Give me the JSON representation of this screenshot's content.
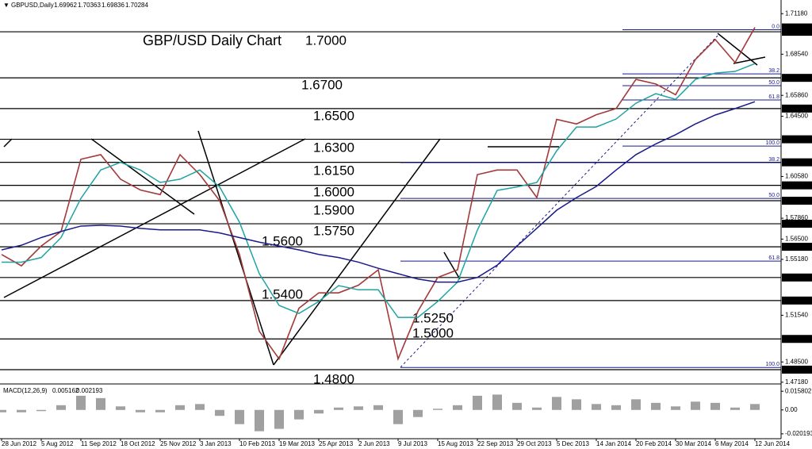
{
  "chart_data": {
    "type": "line",
    "title": "GBP/USD Daily Chart",
    "symbol": "GBPUSD,Daily",
    "ohlc": [
      1.69962,
      1.70363,
      1.69836,
      1.70284
    ],
    "categories": [
      "28 Jun 2012",
      null,
      "5 Aug 2012",
      null,
      "11 Sep 2012",
      null,
      "18 Oct 2012",
      null,
      "25 Nov 2012",
      null,
      "3 Jan 2013",
      null,
      "10 Feb 2013",
      null,
      "19 Mar 2013",
      null,
      "25 Apr 2013",
      null,
      "2 Jun 2013",
      null,
      "9 Jul 2013",
      null,
      "15 Aug 2013",
      null,
      "22 Sep 2013",
      null,
      "29 Oct 2013",
      null,
      "5 Dec 2013",
      null,
      "14 Jan 2014",
      null,
      "20 Feb 2014",
      null,
      "30 Mar 2014",
      null,
      "6 May 2014",
      null,
      "12 Jun 2014"
    ],
    "series": [
      {
        "color": "#a33a3a",
        "values": [
          1.555,
          1.5476,
          1.5605,
          1.57,
          1.617,
          1.62,
          1.604,
          1.597,
          1.594,
          1.62,
          1.607,
          1.59,
          1.555,
          1.505,
          1.487,
          1.52,
          1.53,
          1.53,
          1.535,
          1.545,
          1.487,
          1.518,
          1.54,
          1.545,
          1.607,
          1.61,
          1.61,
          1.592,
          1.643,
          1.64,
          1.646,
          1.65,
          1.669,
          1.666,
          1.659,
          1.682,
          1.695,
          1.68,
          1.70284
        ]
      },
      {
        "color": "#1fa3a3",
        "values": [
          1.55,
          1.55,
          1.553,
          1.566,
          1.5915,
          1.61,
          1.615,
          1.61,
          1.6019,
          1.604,
          1.61,
          1.599,
          1.576,
          1.5425,
          1.5218,
          1.5166,
          1.5244,
          1.5347,
          1.532,
          1.532,
          1.514,
          1.514,
          1.5244,
          1.537,
          1.5709,
          1.5967,
          1.599,
          1.6019,
          1.6225,
          1.638,
          1.638,
          1.6432,
          1.6535,
          1.6597,
          1.656,
          1.669,
          1.6731,
          1.6742,
          1.6793
        ]
      },
      {
        "color": "#1a1a8c",
        "values": [
          1.558,
          1.561,
          1.566,
          1.57,
          1.5735,
          1.574,
          1.5735,
          1.572,
          1.571,
          1.571,
          1.571,
          1.569,
          1.566,
          1.563,
          1.5605,
          1.558,
          1.555,
          1.553,
          1.55,
          1.546,
          1.5425,
          1.539,
          1.537,
          1.537,
          1.54,
          1.548,
          1.5605,
          1.572,
          1.5838,
          1.592,
          1.5993,
          1.61,
          1.62,
          1.627,
          1.633,
          1.64,
          1.6458,
          1.65,
          1.6545
        ]
      }
    ],
    "ylim": [
      1.4712,
      1.7207
    ],
    "yticks": [
      {
        "value": 1.7118,
        "label": "1.71180"
      },
      {
        "value": 1.6854,
        "label": "1.68540"
      },
      {
        "value": 1.6586,
        "label": "1.65860"
      },
      {
        "value": 1.645,
        "label": "1.64500"
      },
      {
        "value": 1.6058,
        "label": "1.60580"
      },
      {
        "value": 1.5786,
        "label": "1.57860"
      },
      {
        "value": 1.565,
        "label": "1.56500"
      },
      {
        "value": 1.5518,
        "label": "1.55180"
      },
      {
        "value": 1.5154,
        "label": "1.51540"
      },
      {
        "value": 1.485,
        "label": "1.48500"
      },
      {
        "value": 1.4718,
        "label": "1.47180"
      }
    ],
    "levels": [
      {
        "value": 1.7,
        "label": "1.7000",
        "axis_label": "1.70000"
      },
      {
        "value": 1.67,
        "label": "1.6700",
        "axis_label": "1.67000"
      },
      {
        "value": 1.65,
        "label": "1.6500",
        "axis_label": "1.65000"
      },
      {
        "value": 1.63,
        "label": "1.6300",
        "axis_label": "1.63000"
      },
      {
        "value": 1.615,
        "label": "1.6150",
        "axis_label": "1.61500"
      },
      {
        "value": 1.6,
        "label": "1.6000",
        "axis_label": "1.60000"
      },
      {
        "value": 1.59,
        "label": "1.5900",
        "axis_label": "1.59000"
      },
      {
        "value": 1.575,
        "label": "1.5750",
        "axis_label": "1.57500"
      },
      {
        "value": 1.56,
        "label": "1.5600",
        "axis_label": "1.56000"
      },
      {
        "value": 1.54,
        "label": "1.5400",
        "axis_label": "1.54000"
      },
      {
        "value": 1.525,
        "label": "1.5250",
        "axis_label": "1.52500"
      },
      {
        "value": 1.5,
        "label": "1.5000",
        "axis_label": "1.50000"
      },
      {
        "value": 1.48,
        "label": "1.4800",
        "axis_label": "1.48000"
      }
    ],
    "fib_upper": [
      {
        "value": 1.7013,
        "label": "0.0"
      },
      {
        "value": 1.6726,
        "label": "38.2"
      },
      {
        "value": 1.6649,
        "label": "50.0"
      },
      {
        "value": 1.6556,
        "label": "61.8"
      },
      {
        "value": 1.6256,
        "label": "100.0"
      }
    ],
    "fib_lower": [
      {
        "value": 1.6148,
        "label": "38.2"
      },
      {
        "value": 1.5915,
        "label": "50.0"
      },
      {
        "value": 1.5507,
        "label": "61.8"
      },
      {
        "value": 1.4814,
        "label": "100.0"
      }
    ],
    "macd": {
      "label": "MACD(12,26,9)",
      "main": 0.005162,
      "signal": 0.002193,
      "color": "#a0a0a0",
      "values": [
        -0.002,
        -0.002,
        -0.001,
        0.004,
        0.012,
        0.01,
        0.003,
        -0.002,
        -0.002,
        0.004,
        0.005,
        -0.005,
        -0.012,
        -0.018,
        -0.016,
        -0.008,
        -0.003,
        0.002,
        0.003,
        0.004,
        -0.012,
        -0.006,
        0.001,
        0.004,
        0.012,
        0.013,
        0.006,
        0.002,
        0.011,
        0.009,
        0.005,
        0.004,
        0.009,
        0.006,
        0.003,
        0.007,
        0.006,
        0.002,
        0.005
      ],
      "ylim": [
        -0.0243,
        0.0213
      ],
      "yticks": [
        0.015802,
        {
          "value": 0,
          "label": "0.00"
        },
        -0.020193
      ]
    }
  }
}
